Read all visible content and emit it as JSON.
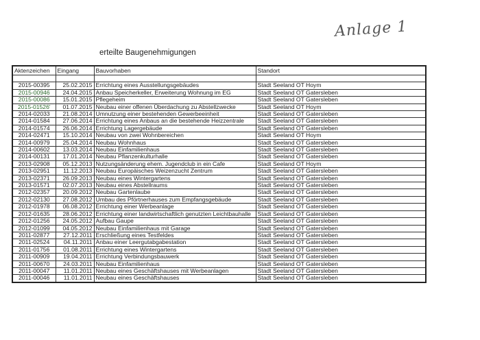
{
  "annotation": "Anlage 1",
  "title": "erteilte Baugenehmigungen",
  "headers": [
    "Aktenzeichen",
    "Eingang",
    "Bauvorhaben",
    "Standort"
  ],
  "highlight_color": "#2e6b2e",
  "rows": [
    {
      "id": "2015-00395",
      "date": "25.02.2015",
      "project": "Errichtung eines Ausstellungsgebäudes",
      "location": "Stadt Seeland OT Hoym"
    },
    {
      "id": "2015-00946",
      "date": "24.04.2015",
      "project": "Anbau Speicherkeller, Erweiterung Wohnung im EG",
      "location": "Stadt Seeland OT Gatersleben",
      "green": true
    },
    {
      "id": "2015-00086",
      "date": "15.01.2015",
      "project": "Pflegeheim",
      "location": "Stadt Seeland OT Gatersleben",
      "green": true
    },
    {
      "id": "2015-01526'",
      "date": "01.07.2015",
      "project": "Neubau einer offenen Überdachung zu Abstellzwecke",
      "location": "Stadt Seeland OT Hoym",
      "green": true
    },
    {
      "id": "2014-02033",
      "date": "21.08.2014",
      "project": "Umnutzung einer bestehenden Gewerbeeinheit",
      "location": "Stadt Seeland OT Gatersleben"
    },
    {
      "id": "2014-01584",
      "date": "27.06.2014",
      "project": "Errichtung eines Anbaus an die bestehende Heizzentrale",
      "location": "Stadt Seeland OT Gatersleben"
    },
    {
      "id": "2014-01574",
      "date": "26.06.2014",
      "project": "Errichtung Lagergebäude",
      "location": "Stadt Seeland OT Gatersleben"
    },
    {
      "id": "2014-02471",
      "date": "15.10.2014",
      "project": "Neubau von zwei Wohnbereichen",
      "location": "Stadt Seeland OT Hoym"
    },
    {
      "id": "2014-00979",
      "date": "25.04.2014",
      "project": "Neubau Wohnhaus",
      "location": "Stadt Seeland OT Gatersleben"
    },
    {
      "id": "2014-00602",
      "date": "13.03.2014",
      "project": "Neubau  Einfamilienhaus",
      "location": "Stadt Seeland OT Gatersleben"
    },
    {
      "id": "2014-00131",
      "date": "17.01.2014",
      "project": "Neubau Pflanzenkulturhalle",
      "location": "Stadt Seeland OT Gatersleben"
    },
    {
      "id": "2013-02908",
      "date": "05.12.2013",
      "project": "Nutzungsänderung ehem. Jugendclub in ein Cafe",
      "location": "Stadt Seeland OT Hoym"
    },
    {
      "id": "2013-02951",
      "date": "11.12.2013",
      "project": "Neubau Europäisches Weizenzucht Zentrum",
      "location": "Stadt Seeland OT Gatersleben"
    },
    {
      "id": "2013-02371",
      "date": "26.09.2013",
      "project": "Neubau eines Wintergartens",
      "location": "Stadt Seeland OT Gatersleben"
    },
    {
      "id": "2013-01571",
      "date": "02.07.2013",
      "project": "Neubau eines Abstellraums",
      "location": "Stadt Seeland OT Gatersleben"
    },
    {
      "id": "2012-02357",
      "date": "20.09.2012",
      "project": "Neubau Gartenlaube",
      "location": "Stadt Seeland OT Gatersleben"
    },
    {
      "id": "2012-02130",
      "date": "27.08.2012",
      "project": "Umbau des Pförtnerhauses zum Empfangsgebäude",
      "location": "Stadt Seeland OT Gatersleben"
    },
    {
      "id": "2012-01978",
      "date": "06.08.2012",
      "project": "Errichtung einer Werbeanlage",
      "location": "Stadt Seeland OT Gatersleben"
    },
    {
      "id": "2012-01635",
      "date": "28.06.2012",
      "project": "Errichtung einer landwirtschaftlich genutzten Leichtbauhalle",
      "location": "Stadt Seeland OT Gatersleben"
    },
    {
      "id": "2012-01256",
      "date": "24.05.2012",
      "project": "Aufbau Gaupe",
      "location": "Stadt Seeland OT Gatersleben"
    },
    {
      "id": "2012-01099",
      "date": "04.05.2012",
      "project": "Neubau Einfamilienhaus mit Garage",
      "location": "Stadt Seeland OT Gatersleben"
    },
    {
      "id": "2011-02877",
      "date": "27.12.2011",
      "project": "Erschließung eines Testfeldes",
      "location": "Stadt Seeland OT Gatersleben"
    },
    {
      "id": "2011-02524",
      "date": "04.11.2011",
      "project": "Anbau einer Leergutabgabestation",
      "location": "Stadt Seeland OT Gatersleben"
    },
    {
      "id": "2011-01756",
      "date": "01.08.2011",
      "project": "Errichtung eines Wintergartens",
      "location": "Stadt Seeland OT Gatersleben"
    },
    {
      "id": "2011-00909",
      "date": "19.04.2011",
      "project": "Errichtung Verbindungsbauwerk",
      "location": "Stadt Seeland OT Gatersleben"
    },
    {
      "id": "2011-00670",
      "date": "24.03.2011",
      "project": "Neubau Einfamilienhaus",
      "location": "Stadt Seeland OT Gatersleben"
    },
    {
      "id": "2011-00047",
      "date": "11.01.2011",
      "project": "Neubau eines Geschäftshauses mit Werbeanlagen",
      "location": "Stadt Seeland OT Gatersleben"
    },
    {
      "id": "2011-00046",
      "date": "11.01.2011",
      "project": "Neubau eines Geschäftshauses",
      "location": "Stadt Seeland OT Gatersleben"
    }
  ]
}
